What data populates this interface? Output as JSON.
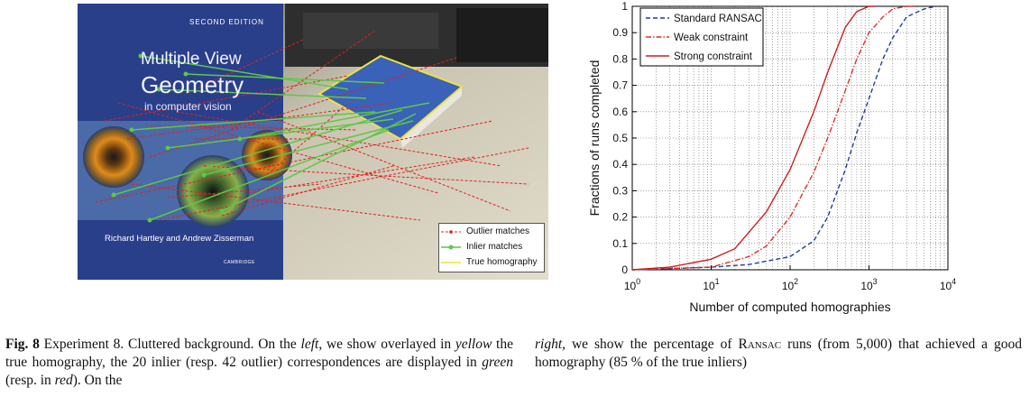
{
  "photo": {
    "book": {
      "edition": "SECOND EDITION",
      "title_line1": "Multiple View",
      "title_line2": "Geometry",
      "subtitle": "in computer vision",
      "authors": "Richard Hartley and Andrew Zisserman",
      "publisher": "CAMBRIDGE"
    },
    "legend": {
      "outlier": "Outlier matches",
      "inlier": "Inlier matches",
      "homography": "True homography"
    },
    "colors": {
      "outlier": "#e02020",
      "inlier": "#5ec848",
      "homography": "#f0e040"
    }
  },
  "chart_data": {
    "type": "line",
    "xscale": "log",
    "xlim": [
      1,
      10000
    ],
    "ylim": [
      0,
      1
    ],
    "grid": true,
    "xlabel": "Number of computed homographies",
    "ylabel": "Fractions of runs completed",
    "x_tick_bases": [
      "10",
      "10",
      "10",
      "10",
      "10"
    ],
    "x_tick_exponents": [
      "0",
      "1",
      "2",
      "3",
      "4"
    ],
    "y_ticks": [
      "0",
      "0.1",
      "0.2",
      "0.3",
      "0.4",
      "0.5",
      "0.6",
      "0.7",
      "0.8",
      "0.9",
      "1"
    ],
    "legend_position": "top-left",
    "series": [
      {
        "name": "Standard RANSAC",
        "color": "#1f3f9f",
        "style": "dashed",
        "x": [
          1,
          10,
          30,
          100,
          200,
          300,
          500,
          700,
          1000,
          1500,
          2000,
          3000,
          5000,
          7000
        ],
        "y": [
          0.0,
          0.01,
          0.02,
          0.05,
          0.11,
          0.2,
          0.38,
          0.52,
          0.65,
          0.8,
          0.88,
          0.96,
          0.99,
          1.0
        ]
      },
      {
        "name": "Weak constraint",
        "color": "#e03030",
        "style": "dashdot",
        "x": [
          1,
          10,
          30,
          50,
          100,
          200,
          300,
          500,
          700,
          1000,
          1500,
          2000,
          3000,
          4000
        ],
        "y": [
          0.0,
          0.01,
          0.05,
          0.09,
          0.2,
          0.37,
          0.5,
          0.68,
          0.8,
          0.9,
          0.96,
          0.99,
          1.0,
          1.0
        ]
      },
      {
        "name": "Strong constraint",
        "color": "#cc2020",
        "style": "solid",
        "x": [
          1,
          3,
          10,
          20,
          50,
          100,
          200,
          300,
          500,
          700,
          1000,
          1200
        ],
        "y": [
          0.0,
          0.01,
          0.04,
          0.08,
          0.22,
          0.38,
          0.6,
          0.75,
          0.92,
          0.98,
          1.0,
          1.0
        ]
      }
    ]
  },
  "caption": {
    "fig_label": "Fig. 8",
    "left_segments": [
      " Experiment 8. Cluttered background. On the ",
      "left",
      ", we show overlayed in ",
      "yellow",
      " the true homography, the 20 inlier (resp. 42 outlier) correspondences are displayed in ",
      "green",
      " (resp. in ",
      "red",
      "). On the"
    ],
    "right_segments": [
      "right",
      ", we show the percentage of ",
      "Ransac",
      " runs (from 5,000) that achieved a good homography (85 % of the true inliers)"
    ]
  }
}
